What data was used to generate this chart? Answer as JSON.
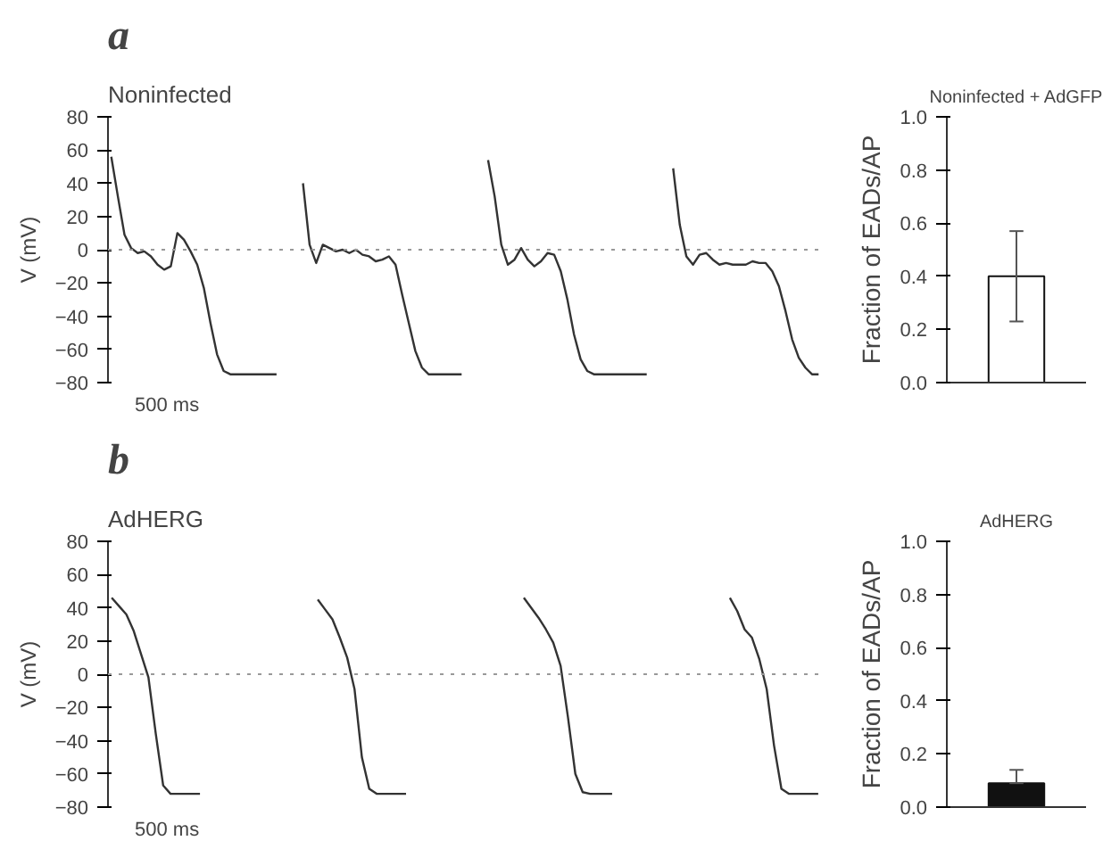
{
  "chart_data": [
    {
      "type": "line",
      "title": "a",
      "subtitle": "Noninfected",
      "ylabel": "V (mV)",
      "categories": [
        null,
        null,
        null,
        null,
        null,
        null,
        null,
        null,
        null,
        null,
        null,
        null,
        null,
        null,
        null,
        null,
        null,
        null,
        null,
        null,
        null,
        null,
        null,
        null,
        null,
        null,
        null,
        null,
        null,
        null,
        null,
        null,
        null,
        null,
        null,
        null,
        null,
        null,
        null,
        null,
        null,
        null,
        null,
        null,
        null,
        null,
        null,
        null,
        null,
        null,
        null,
        null,
        null,
        null,
        null,
        null,
        null,
        null,
        null,
        null,
        null,
        null,
        null,
        null,
        null,
        null,
        null,
        null,
        null,
        null,
        null,
        null,
        null,
        null,
        null,
        null,
        null,
        null,
        null,
        null,
        null,
        null,
        null,
        null,
        null,
        null,
        null,
        null,
        null,
        null,
        null,
        null,
        null,
        null,
        null,
        null,
        null,
        null,
        null,
        null,
        null,
        null,
        null,
        null,
        null,
        null,
        null,
        null
      ],
      "series": [
        {
          "color": "#333333",
          "values": [
            56,
            32,
            9,
            1,
            -2,
            -1,
            -4,
            -9,
            -12,
            -10,
            10,
            6,
            -1,
            -9,
            -23,
            -44,
            -63,
            -73,
            -75,
            -75,
            -75,
            -75,
            -75,
            -75,
            -75,
            -75,
            null,
            null,
            null,
            40,
            3,
            -8,
            3,
            1,
            -1,
            0,
            -2,
            0,
            -3,
            -4,
            -7,
            -6,
            -4,
            -9,
            -27,
            -44,
            -61,
            -71,
            -75,
            -75,
            -75,
            -75,
            -75,
            -75,
            null,
            null,
            null,
            54,
            32,
            3,
            -9,
            -6,
            1,
            -6,
            -10,
            -7,
            -2,
            -3,
            -13,
            -30,
            -51,
            -66,
            -73,
            -75,
            -75,
            -75,
            -75,
            -75,
            -75,
            -75,
            -75,
            -75,
            null,
            null,
            null,
            49,
            15,
            -4,
            -9,
            -3,
            -2,
            -6,
            -9,
            -8,
            -9,
            -9,
            -9,
            -7,
            -8,
            -8,
            -13,
            -22,
            -37,
            -54,
            -65,
            -71,
            -75,
            -75
          ]
        }
      ],
      "ylim": [
        -80,
        80
      ],
      "yticks": [
        -80,
        -60,
        -40,
        -20,
        0,
        20,
        40,
        60,
        80
      ],
      "tick_labels": "y",
      "ref_lines": [
        {
          "axis": "y",
          "value": 0,
          "color": "#999999",
          "line_style": "dotted"
        }
      ],
      "annotations": [
        "500 ms"
      ]
    },
    {
      "type": "bar",
      "title": "Noninfected + AdGFP",
      "ylabel": "Fraction of EADs/AP",
      "categories": [
        null
      ],
      "values": [
        0.4
      ],
      "colors": [
        "#ffffff"
      ],
      "errors": [
        [
          0.23,
          0.57
        ]
      ],
      "ylim": [
        0,
        1
      ],
      "yticks": [
        {
          "value": 0,
          "label": "0.0"
        },
        {
          "value": 0.2,
          "label": "0.2"
        },
        {
          "value": 0.4,
          "label": "0.4"
        },
        {
          "value": 0.6,
          "label": "0.6"
        },
        {
          "value": 0.8,
          "label": "0.8"
        },
        {
          "value": 1,
          "label": "1.0"
        }
      ],
      "tick_labels": "y"
    },
    {
      "type": "line",
      "title": "b",
      "subtitle": "AdHERG",
      "ylabel": "V (mV)",
      "categories": [
        null,
        null,
        null,
        null,
        null,
        null,
        null,
        null,
        null,
        null,
        null,
        null,
        null,
        null,
        null,
        null,
        null,
        null,
        null,
        null,
        null,
        null,
        null,
        null,
        null,
        null,
        null,
        null,
        null,
        null,
        null,
        null,
        null,
        null,
        null,
        null,
        null,
        null,
        null,
        null,
        null,
        null,
        null,
        null,
        null,
        null,
        null,
        null,
        null,
        null,
        null,
        null,
        null,
        null,
        null,
        null,
        null,
        null,
        null,
        null,
        null,
        null,
        null,
        null,
        null,
        null,
        null,
        null,
        null,
        null,
        null,
        null,
        null,
        null,
        null,
        null,
        null,
        null,
        null,
        null,
        null,
        null,
        null,
        null,
        null,
        null,
        null,
        null,
        null,
        null,
        null,
        null,
        null,
        null,
        null,
        null,
        null
      ],
      "series": [
        {
          "color": "#333333",
          "values": [
            46,
            41,
            36,
            26,
            12,
            -2,
            -36,
            -67,
            -72,
            -72,
            -72,
            -72,
            -72,
            null,
            null,
            null,
            null,
            null,
            null,
            null,
            null,
            null,
            null,
            null,
            null,
            null,
            null,
            null,
            45,
            39,
            33,
            22,
            10,
            -9,
            -50,
            -69,
            -72,
            -72,
            -72,
            -72,
            -72,
            null,
            null,
            null,
            null,
            null,
            null,
            null,
            null,
            null,
            null,
            null,
            null,
            null,
            null,
            null,
            46,
            40,
            34,
            27,
            19,
            5,
            -26,
            -60,
            -71,
            -72,
            -72,
            -72,
            -72,
            null,
            null,
            null,
            null,
            null,
            null,
            null,
            null,
            null,
            null,
            null,
            null,
            null,
            null,
            null,
            46,
            38,
            27,
            22,
            9,
            -9,
            -43,
            -69,
            -72,
            -72,
            -72,
            -72,
            -72
          ]
        }
      ],
      "ylim": [
        -80,
        80
      ],
      "yticks": [
        -80,
        -60,
        -40,
        -20,
        0,
        20,
        40,
        60,
        80
      ],
      "tick_labels": "y",
      "ref_lines": [
        {
          "axis": "y",
          "value": 0,
          "color": "#999999",
          "line_style": "dotted"
        }
      ],
      "annotations": [
        "500 ms"
      ]
    },
    {
      "type": "bar",
      "title": "AdHERG",
      "ylabel": "Fraction of EADs/AP",
      "categories": [
        null
      ],
      "values": [
        0.09
      ],
      "colors": [
        "#111111"
      ],
      "errors": [
        [
          0.09,
          0.14
        ]
      ],
      "ylim": [
        0,
        1
      ],
      "yticks": [
        {
          "value": 0,
          "label": "0.0"
        },
        {
          "value": 0.2,
          "label": "0.2"
        },
        {
          "value": 0.4,
          "label": "0.4"
        },
        {
          "value": 0.6,
          "label": "0.6"
        },
        {
          "value": 0.8,
          "label": "0.8"
        },
        {
          "value": 1,
          "label": "1.0"
        }
      ],
      "tick_labels": "y"
    }
  ]
}
